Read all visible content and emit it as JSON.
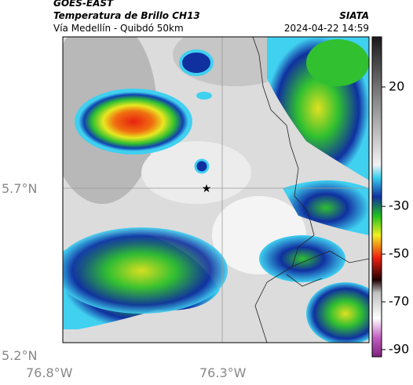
{
  "header": {
    "satellite": "GOES-EAST",
    "product": "Temperatura de Brillo CH13",
    "agency": "SIATA",
    "route": "Vía Medellín - Quibdó 50km",
    "datetime": "2024-04-22 14:59"
  },
  "map": {
    "lat_labels": [
      "5.7°N",
      "5.2°N"
    ],
    "lon_labels": [
      "76.8°W",
      "76.3°W"
    ]
  },
  "colorbar": {
    "lim": [
      -93,
      41
    ],
    "ticks": [
      20,
      -30,
      -50,
      -70,
      -90
    ]
  }
}
